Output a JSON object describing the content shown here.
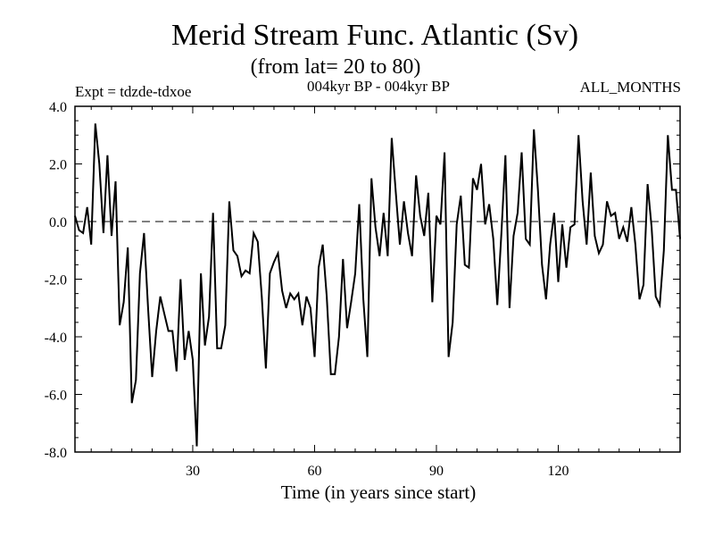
{
  "chart_data": {
    "type": "line",
    "title": "Merid Stream Func. Atlantic (Sv)",
    "subtitle": "(from lat= 20 to 80)",
    "left_label": "Expt = tdzde-tdxoe",
    "center_label": "004kyr BP - 004kyr BP",
    "right_label": "ALL_MONTHS",
    "xlabel": "Time (in years since start)",
    "ylabel": "",
    "xlim": [
      1,
      150
    ],
    "ylim": [
      -8.0,
      4.0
    ],
    "x_ticks": [
      30,
      60,
      90,
      120
    ],
    "y_ticks": [
      "4.0",
      "2.0",
      "0.0",
      "-2.0",
      "-4.0",
      "-6.0",
      "-8.0"
    ],
    "zero_line": "dashed",
    "series": [
      {
        "name": "Merid Stream Func.",
        "x_start": 1,
        "x_step": 1,
        "values": [
          0.2,
          -0.3,
          -0.4,
          0.5,
          -0.8,
          3.4,
          2.0,
          -0.4,
          2.3,
          -0.5,
          1.4,
          -3.6,
          -2.8,
          -0.9,
          -6.3,
          -5.5,
          -1.8,
          -0.4,
          -3.0,
          -5.4,
          -3.8,
          -2.6,
          -3.2,
          -3.8,
          -3.8,
          -5.2,
          -2.0,
          -4.8,
          -3.8,
          -4.8,
          -7.8,
          -1.8,
          -4.3,
          -3.3,
          0.3,
          -4.4,
          -4.4,
          -3.6,
          0.7,
          -1.0,
          -1.2,
          -1.9,
          -1.7,
          -1.8,
          -0.4,
          -0.7,
          -2.6,
          -5.1,
          -1.8,
          -1.4,
          -1.1,
          -2.4,
          -3.0,
          -2.5,
          -2.7,
          -2.5,
          -3.6,
          -2.6,
          -3.0,
          -4.7,
          -1.6,
          -0.8,
          -2.6,
          -5.3,
          -5.3,
          -4.0,
          -1.3,
          -3.7,
          -2.8,
          -1.8,
          0.6,
          -2.7,
          -4.7,
          1.5,
          -0.2,
          -1.2,
          0.3,
          -1.2,
          2.9,
          1.0,
          -0.8,
          0.7,
          -0.4,
          -1.2,
          1.6,
          0.2,
          -0.5,
          1.0,
          -2.8,
          0.2,
          -0.1,
          2.4,
          -4.7,
          -3.5,
          -0.1,
          0.9,
          -1.5,
          -1.6,
          1.5,
          1.1,
          2.0,
          -0.1,
          0.6,
          -0.6,
          -2.9,
          -0.4,
          2.3,
          -3.0,
          -0.5,
          0.3,
          2.4,
          -0.6,
          -0.8,
          3.2,
          1.1,
          -1.5,
          -2.7,
          -0.8,
          0.3,
          -2.1,
          -0.1,
          -1.6,
          -0.2,
          -0.1,
          3.0,
          0.7,
          -0.8,
          1.7,
          -0.5,
          -1.1,
          -0.8,
          0.7,
          0.2,
          0.3,
          -0.6,
          -0.2,
          -0.7,
          0.5,
          -0.8,
          -2.7,
          -2.2,
          1.3,
          -0.2,
          -2.6,
          -2.9,
          -1.0,
          3.0,
          1.1,
          1.1,
          -0.6
        ]
      }
    ]
  }
}
